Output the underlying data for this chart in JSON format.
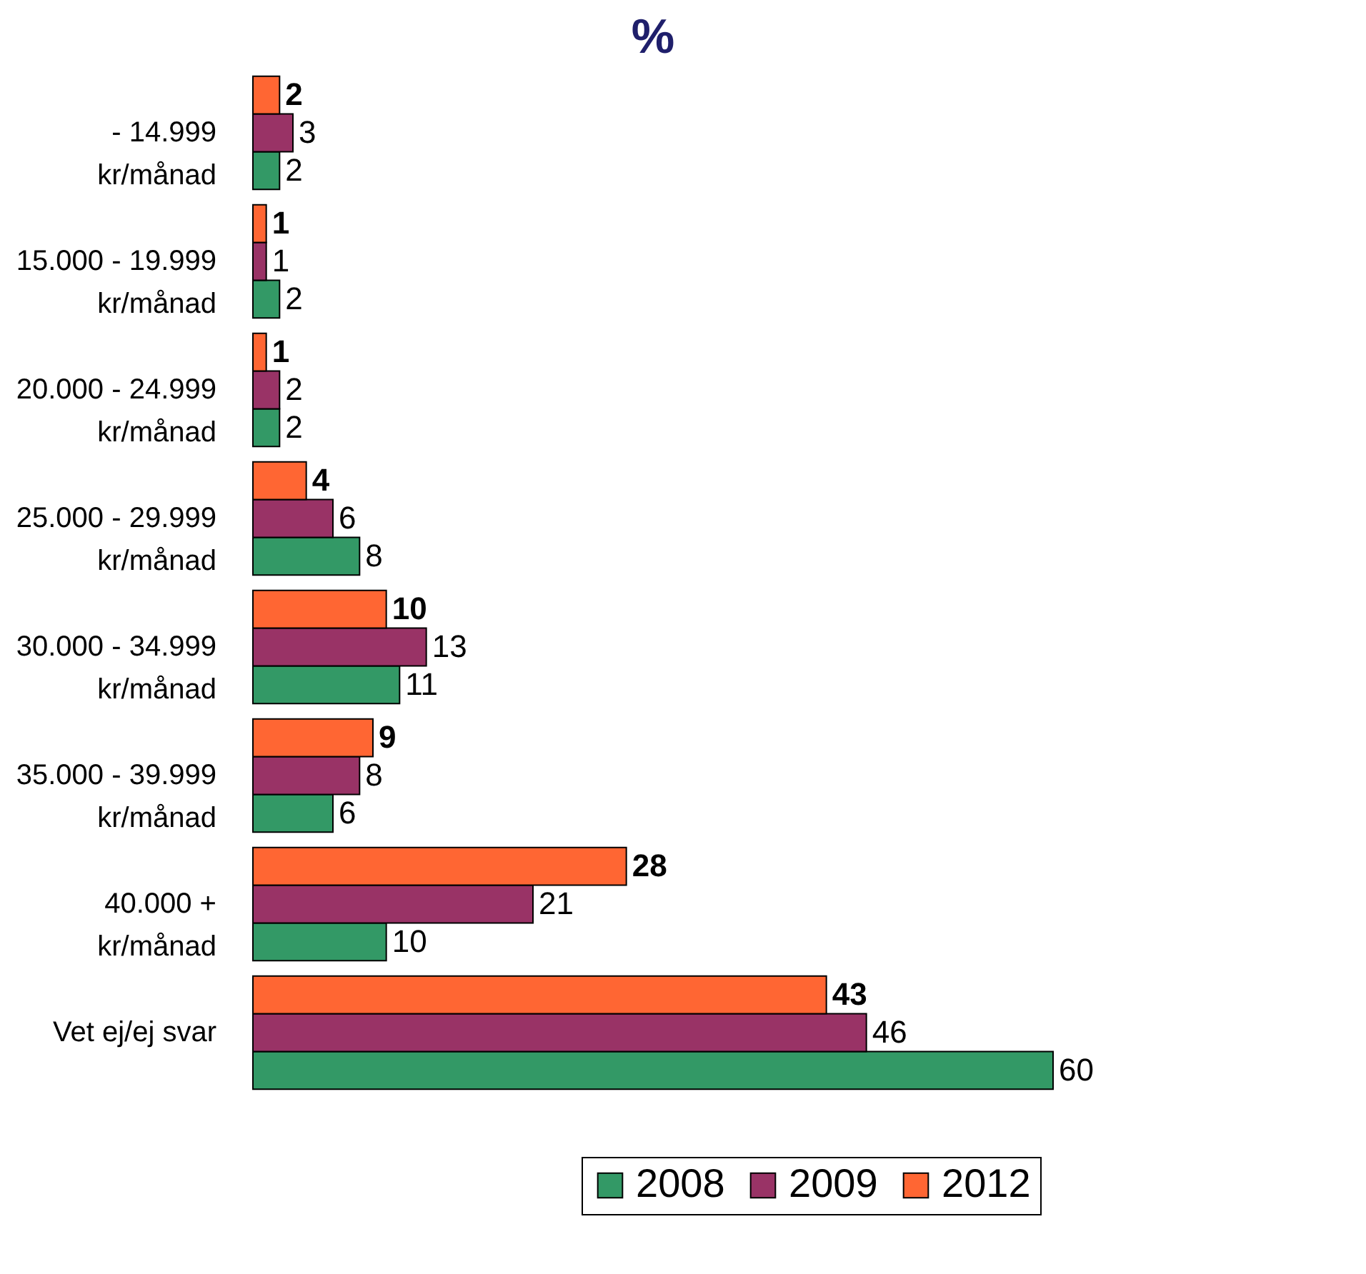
{
  "chart_data": {
    "type": "bar",
    "orientation": "horizontal",
    "title": "%",
    "categories": [
      "- 14.999\nkr/månad",
      "15.000 - 19.999\nkr/månad",
      "20.000 - 24.999\nkr/månad",
      "25.000 - 29.999\nkr/månad",
      "30.000 - 34.999\nkr/månad",
      "35.000 - 39.999\nkr/månad",
      "40.000 +\nkr/månad",
      "Vet ej/ej svar"
    ],
    "series": [
      {
        "name": "2008",
        "color": "#339966",
        "values": [
          2,
          2,
          2,
          8,
          11,
          6,
          10,
          60
        ]
      },
      {
        "name": "2009",
        "color": "#993366",
        "values": [
          3,
          1,
          2,
          6,
          13,
          8,
          21,
          46
        ]
      },
      {
        "name": "2012",
        "color": "#ff6633",
        "values": [
          2,
          1,
          1,
          4,
          10,
          9,
          28,
          43
        ]
      }
    ],
    "data_labels": true,
    "legend": "bottom right",
    "grid": false
  }
}
